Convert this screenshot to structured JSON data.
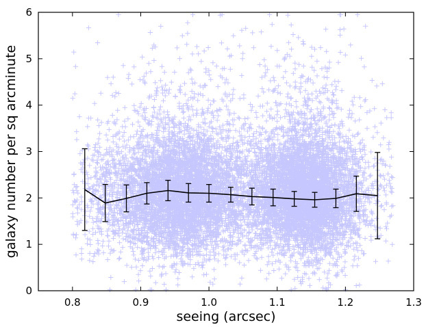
{
  "chart_data": {
    "type": "scatter",
    "xlabel": "seeing (arcsec)",
    "ylabel": "galaxy number per sq arcminute",
    "xlim": [
      0.75,
      1.3
    ],
    "ylim": [
      0,
      6
    ],
    "xticks": [
      0.8,
      0.9,
      1.0,
      1.1,
      1.2,
      1.3
    ],
    "yticks": [
      0,
      1,
      2,
      3,
      4,
      5,
      6
    ],
    "grid": false,
    "legend": "none",
    "scatter_color": "#0000ff",
    "scatter_marker": "plus",
    "line_color": "#000000",
    "binned_means": {
      "x": [
        0.818,
        0.848,
        0.879,
        0.909,
        0.94,
        0.97,
        1.0,
        1.032,
        1.063,
        1.094,
        1.125,
        1.155,
        1.186,
        1.216,
        1.247
      ],
      "y": [
        2.18,
        1.89,
        1.99,
        2.1,
        2.16,
        2.11,
        2.1,
        2.07,
        2.03,
        2.01,
        1.98,
        1.96,
        1.99,
        2.09,
        2.05
      ],
      "yerr": [
        0.88,
        0.4,
        0.29,
        0.23,
        0.22,
        0.2,
        0.19,
        0.16,
        0.18,
        0.18,
        0.16,
        0.16,
        0.2,
        0.38,
        0.93
      ]
    },
    "scatter_summary": {
      "x_range": [
        0.8,
        1.27
      ],
      "y_typical": [
        1.0,
        3.2
      ],
      "y_max": 5.9
    }
  }
}
